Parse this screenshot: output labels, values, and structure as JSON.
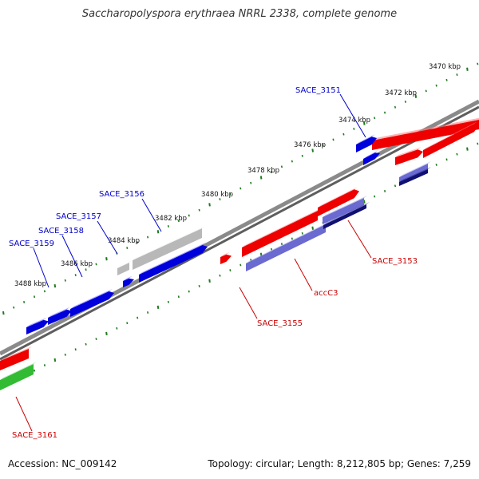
{
  "title": "Saccharopolyspora erythraea NRRL 2338, complete genome",
  "footer": {
    "accession": "Accession: NC_009142",
    "stats": "Topology: circular; Length: 8,212,805 bp; Genes: 7,259"
  },
  "colors": {
    "backbone": "#7a7a7a",
    "tick": "#1f7a1f",
    "forward_label": "#0000cc",
    "reverse_label": "#cc0000",
    "blue_gene": "#0000dd",
    "red_gene": "#ee0000",
    "grey_gene": "#b8b8b8",
    "green_gene": "#33bb33",
    "purple_gene": "#6a6ad0",
    "navy_gene": "#101070"
  },
  "scale_labels": [
    {
      "label": "3470 kbp",
      "kbp": 3470
    },
    {
      "label": "3472 kbp",
      "kbp": 3472
    },
    {
      "label": "3474 kbp",
      "kbp": 3474
    },
    {
      "label": "3476 kbp",
      "kbp": 3476
    },
    {
      "label": "3478 kbp",
      "kbp": 3478
    },
    {
      "label": "3480 kbp",
      "kbp": 3480
    },
    {
      "label": "3482 kbp",
      "kbp": 3482
    },
    {
      "label": "3484 kbp",
      "kbp": 3484
    },
    {
      "label": "3486 kbp",
      "kbp": 3486
    },
    {
      "label": "3488 kbp",
      "kbp": 3488
    }
  ],
  "gene_labels": [
    {
      "name": "SACE_3151",
      "strand": "forward"
    },
    {
      "name": "SACE_3156",
      "strand": "forward"
    },
    {
      "name": "SACE_3157",
      "strand": "forward"
    },
    {
      "name": "SACE_3158",
      "strand": "forward"
    },
    {
      "name": "SACE_3159",
      "strand": "forward"
    },
    {
      "name": "SACE_3153",
      "strand": "reverse"
    },
    {
      "name": "accC3",
      "strand": "reverse"
    },
    {
      "name": "SACE_3155",
      "strand": "reverse"
    },
    {
      "name": "SACE_3161",
      "strand": "reverse"
    }
  ]
}
